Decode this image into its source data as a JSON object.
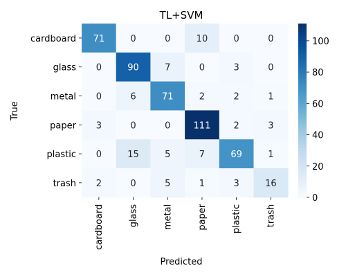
{
  "chart_data": {
    "type": "heatmap",
    "title": "TL+SVM",
    "xlabel": "Predicted",
    "ylabel": "True",
    "x_categories": [
      "cardboard",
      "glass",
      "metal",
      "paper",
      "plastic",
      "trash"
    ],
    "y_categories": [
      "cardboard",
      "glass",
      "metal",
      "paper",
      "plastic",
      "trash"
    ],
    "values": [
      [
        71,
        0,
        0,
        10,
        0,
        0
      ],
      [
        0,
        90,
        7,
        0,
        3,
        0
      ],
      [
        0,
        6,
        71,
        2,
        2,
        1
      ],
      [
        3,
        0,
        0,
        111,
        2,
        3
      ],
      [
        0,
        15,
        5,
        7,
        69,
        1
      ],
      [
        2,
        0,
        5,
        1,
        3,
        16
      ]
    ],
    "colormap": "Blues",
    "colorbar": {
      "min": 0,
      "max": 111,
      "ticks": [
        0,
        20,
        40,
        60,
        80,
        100
      ]
    },
    "grid": false,
    "legend": "colorbar right"
  }
}
